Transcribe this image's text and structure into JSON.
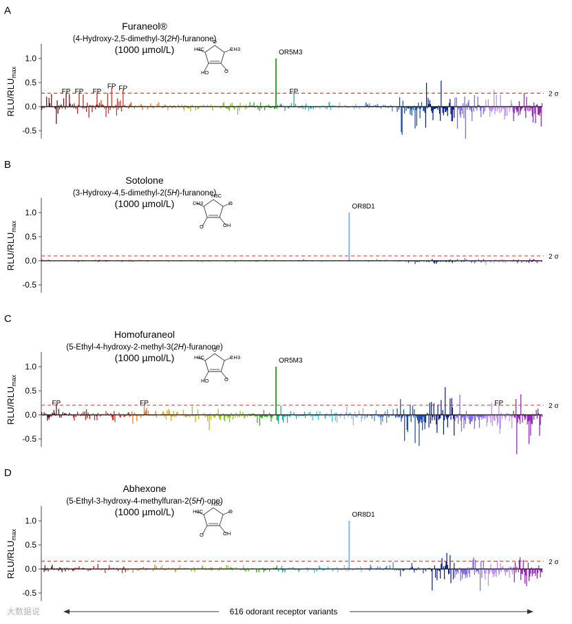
{
  "figure": {
    "x_axis_label": "616 odorant receptor variants",
    "threshold_label": "2 σ",
    "watermark": "大数据说"
  },
  "chart_data": [
    {
      "panel": "A",
      "type": "bar",
      "title": "Furaneol®",
      "subtitle_parts": [
        {
          "t": "(4-Hydroxy-2,5-dimethyl-3(",
          "i": false
        },
        {
          "t": "2H",
          "i": true
        },
        {
          "t": ")-furanone)",
          "i": false
        }
      ],
      "concentration": "(1000 µmol/L)",
      "ylabel_main": "RLU/RLU",
      "ylabel_sub": "max",
      "ylim": [
        -0.55,
        1.25
      ],
      "yticks": [
        "-0.5",
        "0.0",
        "0.5",
        "1.0"
      ],
      "threshold": 0.28,
      "n_receptors": 616,
      "peak": {
        "receptor": "OR5M3",
        "index": 288,
        "value": 1.0
      },
      "fp_labels": [
        {
          "text": "FP",
          "index": 30,
          "value": 0.24
        },
        {
          "text": "FP",
          "index": 46,
          "value": 0.24
        },
        {
          "text": "FP",
          "index": 68,
          "value": 0.24
        },
        {
          "text": "FP",
          "index": 86,
          "value": 0.35
        },
        {
          "text": "FP",
          "index": 100,
          "value": 0.31
        },
        {
          "text": "FP",
          "index": 310,
          "value": 0.24
        }
      ],
      "noise_profile": [
        {
          "from": 0,
          "to": 100,
          "amp": 0.36,
          "bias": -0.02
        },
        {
          "from": 100,
          "to": 210,
          "amp": 0.12,
          "bias": 0.0
        },
        {
          "from": 210,
          "to": 440,
          "amp": 0.14,
          "bias": 0.0
        },
        {
          "from": 440,
          "to": 616,
          "amp": 0.5,
          "bias": -0.12
        }
      ],
      "molecule": {
        "labels": [
          "H3C",
          "CH3",
          "HO",
          "O",
          "O"
        ]
      }
    },
    {
      "panel": "B",
      "type": "bar",
      "title": "Sotolone",
      "subtitle_parts": [
        {
          "t": "(3-Hydroxy-4,5-dimethyl-2(",
          "i": false
        },
        {
          "t": "5H",
          "i": true
        },
        {
          "t": ")-furanone)",
          "i": false
        }
      ],
      "concentration": "(1000 µmol/L)",
      "ylabel_main": "RLU/RLU",
      "ylabel_sub": "max",
      "ylim": [
        -0.55,
        1.25
      ],
      "yticks": [
        "-0.5",
        "0.0",
        "0.5",
        "1.0"
      ],
      "threshold": 0.1,
      "n_receptors": 616,
      "peak": {
        "receptor": "OR8D1",
        "index": 378,
        "value": 1.0
      },
      "fp_labels": [],
      "noise_profile": [
        {
          "from": 0,
          "to": 450,
          "amp": 0.03,
          "bias": 0.0
        },
        {
          "from": 450,
          "to": 616,
          "amp": 0.07,
          "bias": -0.02
        }
      ],
      "molecule": {
        "labels": [
          "CH3",
          "O",
          "O",
          "H3C",
          "OH"
        ]
      }
    },
    {
      "panel": "C",
      "type": "bar",
      "title": "Homofuraneol",
      "subtitle_parts": [
        {
          "t": "(5-Ethyl-4-hydroxy-2-methyl-3(",
          "i": false
        },
        {
          "t": "2H",
          "i": true
        },
        {
          "t": ")-furanone)",
          "i": false
        }
      ],
      "concentration": "(1000 µmol/L)",
      "ylabel_main": "RLU/RLU",
      "ylabel_sub": "max",
      "ylim": [
        -0.55,
        1.25
      ],
      "yticks": [
        "-0.5",
        "0.0",
        "0.5",
        "1.0"
      ],
      "threshold": 0.2,
      "n_receptors": 616,
      "peak": {
        "receptor": "OR5M3",
        "index": 288,
        "value": 1.0
      },
      "fp_labels": [
        {
          "text": "FP",
          "index": 18,
          "value": 0.17
        },
        {
          "text": "FP",
          "index": 126,
          "value": 0.17
        },
        {
          "text": "FP",
          "index": 562,
          "value": 0.17
        }
      ],
      "noise_profile": [
        {
          "from": 0,
          "to": 200,
          "amp": 0.2,
          "bias": -0.01
        },
        {
          "from": 200,
          "to": 440,
          "amp": 0.22,
          "bias": -0.03
        },
        {
          "from": 440,
          "to": 616,
          "amp": 0.6,
          "bias": -0.14
        }
      ],
      "molecule": {
        "labels": [
          "H3C",
          "CH3",
          "HO",
          "O",
          "O"
        ]
      }
    },
    {
      "panel": "D",
      "type": "bar",
      "title": "Abhexone",
      "subtitle_parts": [
        {
          "t": "(5-Ethyl-3-hydroxy-4-methylfuran-2(",
          "i": false
        },
        {
          "t": "5H",
          "i": true
        },
        {
          "t": ")-one)",
          "i": false
        }
      ],
      "concentration": "(1000 µmol/L)",
      "ylabel_main": "RLU/RLU",
      "ylabel_sub": "max",
      "ylim": [
        -0.55,
        1.25
      ],
      "yticks": [
        "-0.5",
        "0.0",
        "0.5",
        "1.0"
      ],
      "threshold": 0.16,
      "n_receptors": 616,
      "peak": {
        "receptor": "OR8D1",
        "index": 378,
        "value": 1.0
      },
      "fp_labels": [],
      "noise_profile": [
        {
          "from": 0,
          "to": 480,
          "amp": 0.1,
          "bias": 0.0
        },
        {
          "from": 480,
          "to": 616,
          "amp": 0.42,
          "bias": -0.12
        }
      ],
      "molecule": {
        "labels": [
          "H3C",
          "O",
          "O",
          "H3C",
          "OH"
        ]
      }
    }
  ],
  "receptor_colors": [
    "#5a0f14",
    "#c01717",
    "#d62a1e",
    "#e9761a",
    "#e3a51a",
    "#b6b415",
    "#8cc21b",
    "#2ea81c",
    "#1ba8a0",
    "#36c3da",
    "#8cb4e8",
    "#4a7fd3",
    "#1a4aa8",
    "#0c1b8c",
    "#7e68e2",
    "#bc8df2",
    "#8f21b2"
  ]
}
